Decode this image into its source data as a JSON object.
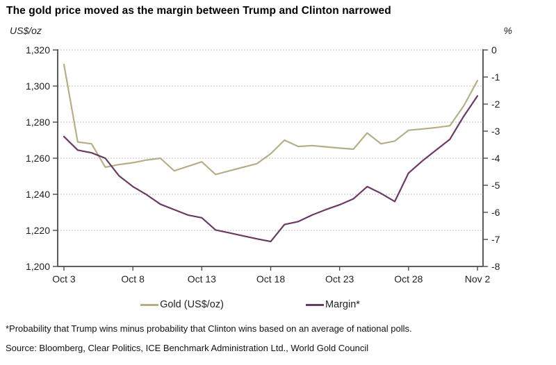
{
  "title": "The gold price moved as the margin between Trump and Clinton narrowed",
  "axes": {
    "left_unit": "US$/oz",
    "right_unit": "%",
    "left_ticks": [
      "1,320",
      "1,300",
      "1,280",
      "1,260",
      "1,240",
      "1,220",
      "1,200"
    ],
    "right_ticks": [
      "0",
      "-1",
      "-2",
      "-3",
      "-4",
      "-5",
      "-6",
      "-7",
      "-8"
    ],
    "x_ticks": [
      "Oct 3",
      "Oct 8",
      "Oct 13",
      "Oct 18",
      "Oct 23",
      "Oct 28",
      "Nov 2"
    ]
  },
  "legend": [
    {
      "label": "Gold (US$/oz)",
      "color": "#b3b083"
    },
    {
      "label": "Margin*",
      "color": "#6a3a5f"
    }
  ],
  "footnote": "*Probability that Trump wins minus probability that Clinton wins based on an average of national polls.",
  "source": "Source: Bloomberg, Clear Politics, ICE Benchmark Administration Ltd., World Gold Council",
  "colors": {
    "gold_line": "#b3b083",
    "margin_line": "#6a3a5f",
    "axis": "#4a4a4a",
    "gridline": "#bdbdbd"
  },
  "chart_data": {
    "type": "line",
    "x": [
      "Oct 3",
      "Oct 4",
      "Oct 5",
      "Oct 6",
      "Oct 7",
      "Oct 8",
      "Oct 9",
      "Oct 10",
      "Oct 11",
      "Oct 12",
      "Oct 13",
      "Oct 14",
      "Oct 15",
      "Oct 16",
      "Oct 17",
      "Oct 18",
      "Oct 19",
      "Oct 20",
      "Oct 21",
      "Oct 22",
      "Oct 23",
      "Oct 24",
      "Oct 25",
      "Oct 26",
      "Oct 27",
      "Oct 28",
      "Oct 29",
      "Oct 30",
      "Oct 31",
      "Nov 1",
      "Nov 2"
    ],
    "x_tick_labels": [
      "Oct 3",
      "Oct 8",
      "Oct 13",
      "Oct 18",
      "Oct 23",
      "Oct 28",
      "Nov 2"
    ],
    "x_tick_every": 5,
    "series": [
      {
        "name": "Gold (US$/oz)",
        "slug": "gold-price-line",
        "axis": "left",
        "color": "#b3b083",
        "values": [
          1312,
          1269,
          1268,
          1255,
          1256.5,
          1257.5,
          1259,
          1260,
          1253,
          1255.5,
          1258,
          1251,
          1253,
          1255,
          1257,
          1262.5,
          1270,
          1266.5,
          1267,
          1266.3,
          1265.6,
          1265,
          1274,
          1268,
          1269.5,
          1275.5,
          1276.2,
          1277,
          1278,
          1289,
          1303
        ]
      },
      {
        "name": "Margin*",
        "slug": "margin-line",
        "axis": "right",
        "color": "#6a3a5f",
        "values": [
          -3.2,
          -3.7,
          -3.8,
          -4.0,
          -4.65,
          -5.05,
          -5.35,
          -5.7,
          -5.9,
          -6.1,
          -6.2,
          -6.65,
          -6.76,
          -6.87,
          -6.98,
          -7.08,
          -6.45,
          -6.34,
          -6.1,
          -5.9,
          -5.72,
          -5.5,
          -5.05,
          -5.3,
          -5.6,
          -4.55,
          -4.1,
          -3.7,
          -3.3,
          -2.45,
          -1.7
        ]
      }
    ],
    "left_axis": {
      "label": "US$/oz",
      "range": [
        1200,
        1320
      ],
      "tick_step": 20
    },
    "right_axis": {
      "label": "%",
      "range": [
        -8,
        0
      ],
      "tick_step": 1
    },
    "title": "The gold price moved as the margin between Trump and Clinton narrowed",
    "grid": "horizontal dashed at left-axis ticks",
    "legend_position": "bottom"
  }
}
